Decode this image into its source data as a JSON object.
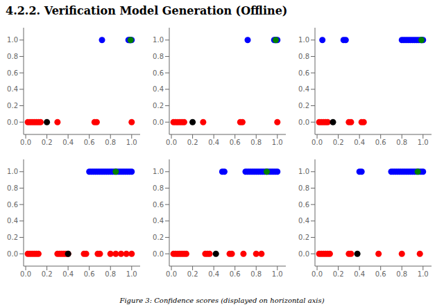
{
  "title": "4.2.2.  Verification Model Generation (Offline)",
  "caption": "Figure 3: Confidence scores (displayed on horizontal axis)",
  "chart_data": [
    {
      "type": "scatter",
      "xlim": [
        -0.02,
        1.08
      ],
      "ylim": [
        -0.15,
        1.15
      ],
      "xticks": [
        {
          "value": 0.0,
          "label": "0.0"
        },
        0.2,
        0.4,
        0.6,
        0.8,
        {
          "value": 1.0,
          "label": "1.0"
        }
      ],
      "yticks": [
        {
          "value": 0.0,
          "label": "0.0"
        },
        0.2,
        0.4,
        0.6,
        0.8,
        {
          "value": 1.0,
          "label": "1.0"
        }
      ],
      "grid": false,
      "series": [
        {
          "color": "red",
          "x": [
            0.02,
            0.04,
            0.06,
            0.08,
            0.1,
            0.12,
            0.14,
            0.3,
            0.65,
            0.67,
            1.0
          ],
          "values": [
            0.0,
            0.0,
            0.0,
            0.0,
            0.0,
            0.0,
            0.0,
            0.0,
            0.0,
            0.0,
            0.0
          ]
        },
        {
          "color": "black",
          "x": [
            0.2
          ],
          "values": [
            0.0
          ]
        },
        {
          "color": "blue",
          "x": [
            0.72,
            0.97,
            0.98,
            0.985,
            0.99,
            1.0
          ],
          "values": [
            1.0,
            1.0,
            1.0,
            1.0,
            1.0,
            1.0
          ]
        },
        {
          "color": "green",
          "x": [
            0.99
          ],
          "values": [
            1.0
          ]
        }
      ]
    },
    {
      "type": "scatter",
      "xlim": [
        -0.02,
        1.08
      ],
      "ylim": [
        -0.15,
        1.15
      ],
      "xticks": [
        {
          "value": 0.0,
          "label": "0.0"
        },
        0.2,
        0.4,
        0.6,
        0.8,
        {
          "value": 1.0,
          "label": "1.0"
        }
      ],
      "yticks": [
        {
          "value": 0.0,
          "label": "0.0"
        },
        0.2,
        0.4,
        0.6,
        0.8,
        {
          "value": 1.0,
          "label": "1.0"
        }
      ],
      "grid": false,
      "series": [
        {
          "color": "red",
          "x": [
            0.02,
            0.04,
            0.06,
            0.08,
            0.1,
            0.12,
            0.3,
            0.65,
            0.67,
            1.0
          ],
          "values": [
            0.0,
            0.0,
            0.0,
            0.0,
            0.0,
            0.0,
            0.0,
            0.0,
            0.0,
            0.0
          ]
        },
        {
          "color": "black",
          "x": [
            0.2
          ],
          "values": [
            0.0
          ]
        },
        {
          "color": "blue",
          "x": [
            0.72,
            0.97,
            0.98,
            0.99,
            1.0
          ],
          "values": [
            1.0,
            1.0,
            1.0,
            1.0,
            1.0
          ]
        },
        {
          "color": "green",
          "x": [
            0.985
          ],
          "values": [
            1.0
          ]
        }
      ]
    },
    {
      "type": "scatter",
      "xlim": [
        -0.02,
        1.08
      ],
      "ylim": [
        -0.15,
        1.15
      ],
      "xticks": [
        {
          "value": 0.0,
          "label": "0.0"
        },
        0.2,
        0.4,
        0.6,
        0.8,
        {
          "value": 1.0,
          "label": "1.0"
        }
      ],
      "yticks": [
        {
          "value": 0.0,
          "label": "0.0"
        },
        0.2,
        0.4,
        0.6,
        0.8,
        {
          "value": 1.0,
          "label": "1.0"
        }
      ],
      "grid": false,
      "series": [
        {
          "color": "red",
          "x": [
            0.02,
            0.04,
            0.06,
            0.08,
            0.1,
            0.3,
            0.32,
            0.42,
            0.44
          ],
          "values": [
            0.0,
            0.0,
            0.0,
            0.0,
            0.0,
            0.0,
            0.0,
            0.0,
            0.0
          ]
        },
        {
          "color": "black",
          "x": [
            0.15
          ],
          "values": [
            0.0
          ]
        },
        {
          "color": "blue",
          "x": [
            0.05,
            0.25,
            0.27,
            0.8,
            0.82,
            0.84,
            0.86,
            0.88,
            0.9,
            0.92,
            0.94,
            0.96,
            0.98,
            0.99,
            1.0
          ],
          "values": [
            1.0,
            1.0,
            1.0,
            1.0,
            1.0,
            1.0,
            1.0,
            1.0,
            1.0,
            1.0,
            1.0,
            1.0,
            1.0,
            1.0,
            1.0
          ]
        },
        {
          "color": "green",
          "x": [
            0.985
          ],
          "values": [
            1.0
          ]
        }
      ]
    },
    {
      "type": "scatter",
      "xlim": [
        -0.02,
        1.08
      ],
      "ylim": [
        -0.15,
        1.15
      ],
      "xticks": [
        {
          "value": 0.0,
          "label": "0.0"
        },
        0.2,
        0.4,
        0.6,
        0.8,
        {
          "value": 1.0,
          "label": "1.0"
        }
      ],
      "yticks": [
        {
          "value": 0.0,
          "label": "0.0"
        },
        0.2,
        0.4,
        0.6,
        0.8,
        {
          "value": 1.0,
          "label": "1.0"
        }
      ],
      "grid": false,
      "series": [
        {
          "color": "red",
          "x": [
            0.02,
            0.04,
            0.06,
            0.08,
            0.1,
            0.12,
            0.3,
            0.32,
            0.34,
            0.36,
            0.38,
            0.4,
            0.55,
            0.57,
            0.68,
            0.7,
            0.8,
            0.85,
            0.9,
            0.95,
            1.0
          ],
          "values": [
            0.0,
            0.0,
            0.0,
            0.0,
            0.0,
            0.0,
            0.0,
            0.0,
            0.0,
            0.0,
            0.0,
            0.0,
            0.0,
            0.0,
            0.0,
            0.0,
            0.0,
            0.0,
            0.0,
            0.0,
            0.0
          ]
        },
        {
          "color": "black",
          "x": [
            0.4
          ],
          "values": [
            0.0
          ]
        },
        {
          "color": "blue",
          "x": [
            0.6,
            0.62,
            0.64,
            0.66,
            0.68,
            0.7,
            0.72,
            0.74,
            0.76,
            0.78,
            0.8,
            0.82,
            0.84,
            0.86,
            0.88,
            0.9,
            0.92,
            0.94,
            0.96,
            0.98,
            1.0
          ],
          "values": [
            1.0,
            1.0,
            1.0,
            1.0,
            1.0,
            1.0,
            1.0,
            1.0,
            1.0,
            1.0,
            1.0,
            1.0,
            1.0,
            1.0,
            1.0,
            1.0,
            1.0,
            1.0,
            1.0,
            1.0,
            1.0
          ]
        },
        {
          "color": "green",
          "x": [
            0.85
          ],
          "values": [
            1.0
          ]
        }
      ]
    },
    {
      "type": "scatter",
      "xlim": [
        -0.02,
        1.08
      ],
      "ylim": [
        -0.15,
        1.15
      ],
      "xticks": [
        {
          "value": 0.0,
          "label": "0.0"
        },
        0.2,
        0.4,
        0.6,
        0.8,
        {
          "value": 1.0,
          "label": "1.0"
        }
      ],
      "yticks": [
        {
          "value": 0.0,
          "label": "0.0"
        },
        0.2,
        0.4,
        0.6,
        0.8,
        {
          "value": 1.0,
          "label": "1.0"
        }
      ],
      "grid": false,
      "series": [
        {
          "color": "red",
          "x": [
            0.02,
            0.04,
            0.06,
            0.08,
            0.1,
            0.12,
            0.14,
            0.32,
            0.34,
            0.36,
            0.55,
            0.57,
            0.68,
            0.8,
            0.85
          ],
          "values": [
            0.0,
            0.0,
            0.0,
            0.0,
            0.0,
            0.0,
            0.0,
            0.0,
            0.0,
            0.0,
            0.0,
            0.0,
            0.0,
            0.0,
            0.0
          ]
        },
        {
          "color": "black",
          "x": [
            0.42
          ],
          "values": [
            0.0
          ]
        },
        {
          "color": "blue",
          "x": [
            0.48,
            0.5,
            0.7,
            0.72,
            0.74,
            0.76,
            0.78,
            0.8,
            0.82,
            0.84,
            0.86,
            0.88,
            0.9,
            0.92,
            0.94,
            0.96,
            0.98,
            1.0
          ],
          "values": [
            1.0,
            1.0,
            1.0,
            1.0,
            1.0,
            1.0,
            1.0,
            1.0,
            1.0,
            1.0,
            1.0,
            1.0,
            1.0,
            1.0,
            1.0,
            1.0,
            1.0,
            1.0
          ]
        },
        {
          "color": "green",
          "x": [
            0.9
          ],
          "values": [
            1.0
          ]
        }
      ]
    },
    {
      "type": "scatter",
      "xlim": [
        -0.02,
        1.08
      ],
      "ylim": [
        -0.15,
        1.15
      ],
      "xticks": [
        {
          "value": 0.0,
          "label": "0.0"
        },
        0.2,
        0.4,
        0.6,
        0.8,
        {
          "value": 1.0,
          "label": "1.0"
        }
      ],
      "yticks": [
        {
          "value": 0.0,
          "label": "0.0"
        },
        0.2,
        0.4,
        0.6,
        0.8,
        {
          "value": 1.0,
          "label": "1.0"
        }
      ],
      "grid": false,
      "series": [
        {
          "color": "red",
          "x": [
            0.02,
            0.04,
            0.06,
            0.08,
            0.1,
            0.12,
            0.3,
            0.32,
            0.58,
            0.8,
            0.97
          ],
          "values": [
            0.0,
            0.0,
            0.0,
            0.0,
            0.0,
            0.0,
            0.0,
            0.0,
            0.0,
            0.0,
            0.0
          ]
        },
        {
          "color": "black",
          "x": [
            0.38
          ],
          "values": [
            0.0
          ]
        },
        {
          "color": "blue",
          "x": [
            0.4,
            0.42,
            0.7,
            0.72,
            0.74,
            0.76,
            0.78,
            0.8,
            0.82,
            0.84,
            0.86,
            0.88,
            0.9,
            0.92,
            0.94,
            0.96,
            0.98,
            1.0
          ],
          "values": [
            1.0,
            1.0,
            1.0,
            1.0,
            1.0,
            1.0,
            1.0,
            1.0,
            1.0,
            1.0,
            1.0,
            1.0,
            1.0,
            1.0,
            1.0,
            1.0,
            1.0,
            1.0
          ]
        },
        {
          "color": "green",
          "x": [
            0.95
          ],
          "values": [
            1.0
          ]
        }
      ]
    }
  ]
}
